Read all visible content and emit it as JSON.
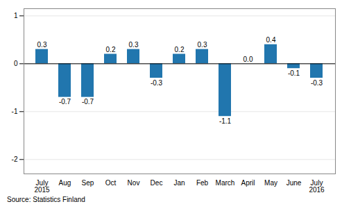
{
  "chart_data": {
    "type": "bar",
    "caption": "Source: Statistics Finland",
    "categories": [
      "July\n2015",
      "Aug",
      "Sep",
      "Oct",
      "Nov",
      "Dec",
      "Jan",
      "Feb",
      "March",
      "April",
      "May",
      "June",
      "July\n2016"
    ],
    "values": [
      0.3,
      -0.7,
      -0.7,
      0.2,
      0.3,
      -0.3,
      0.2,
      0.3,
      -1.1,
      0.0,
      0.4,
      -0.1,
      -0.3
    ],
    "value_labels": [
      "0.3",
      "-0.7",
      "-0.7",
      "0.2",
      "0.3",
      "-0.3",
      "0.2",
      "0.3",
      "-1.1",
      "0.0",
      "0.4",
      "-0.1",
      "-0.3"
    ],
    "color": "#2176ae",
    "ylim": [
      -2.3,
      1.15
    ],
    "yticks": [
      -2,
      -1,
      0,
      1
    ],
    "grid": true,
    "data_labels": true
  }
}
